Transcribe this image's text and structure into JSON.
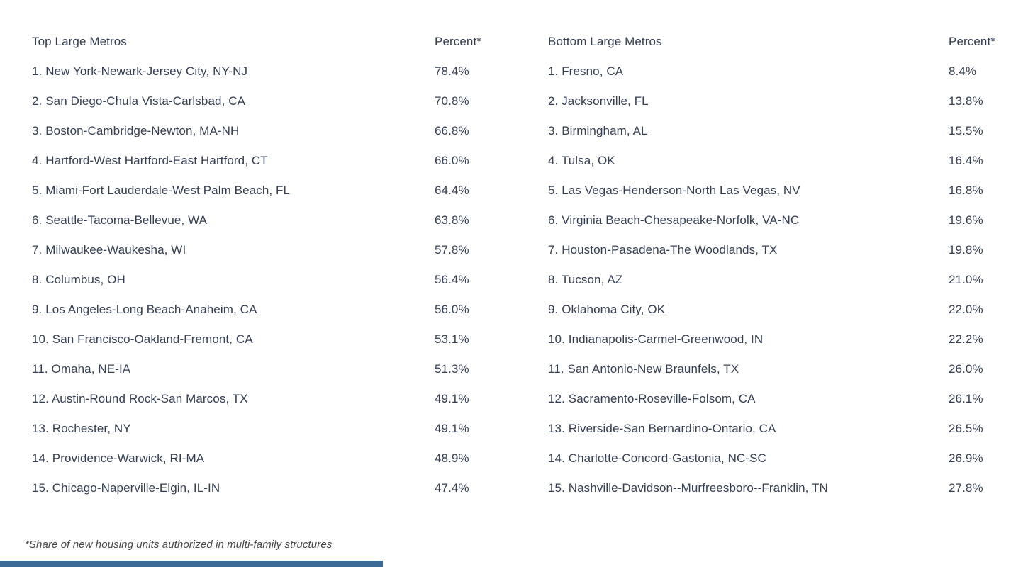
{
  "chart_data": {
    "type": "table",
    "footnote": "*Share of new housing units authorized in multi-family structures",
    "tables": [
      {
        "id": "top-large-metros",
        "header": "Top Large Metros",
        "percent_header": "Percent*",
        "rows": [
          {
            "name": "1. New York-Newark-Jersey City, NY-NJ",
            "percent": "78.4%",
            "value": 78.4
          },
          {
            "name": "2. San Diego-Chula Vista-Carlsbad, CA",
            "percent": "70.8%",
            "value": 70.8
          },
          {
            "name": "3. Boston-Cambridge-Newton, MA-NH",
            "percent": "66.8%",
            "value": 66.8
          },
          {
            "name": "4. Hartford-West Hartford-East Hartford, CT",
            "percent": "66.0%",
            "value": 66.0
          },
          {
            "name": "5. Miami-Fort Lauderdale-West Palm Beach, FL",
            "percent": "64.4%",
            "value": 64.4
          },
          {
            "name": "6. Seattle-Tacoma-Bellevue, WA",
            "percent": "63.8%",
            "value": 63.8
          },
          {
            "name": "7. Milwaukee-Waukesha, WI",
            "percent": "57.8%",
            "value": 57.8
          },
          {
            "name": "8. Columbus, OH",
            "percent": "56.4%",
            "value": 56.4
          },
          {
            "name": "9. Los Angeles-Long Beach-Anaheim, CA",
            "percent": "56.0%",
            "value": 56.0
          },
          {
            "name": "10. San Francisco-Oakland-Fremont, CA",
            "percent": "53.1%",
            "value": 53.1
          },
          {
            "name": "11. Omaha, NE-IA",
            "percent": "51.3%",
            "value": 51.3
          },
          {
            "name": "12. Austin-Round Rock-San Marcos, TX",
            "percent": "49.1%",
            "value": 49.1
          },
          {
            "name": "13. Rochester, NY",
            "percent": "49.1%",
            "value": 49.1
          },
          {
            "name": "14. Providence-Warwick, RI-MA",
            "percent": "48.9%",
            "value": 48.9
          },
          {
            "name": "15. Chicago-Naperville-Elgin, IL-IN",
            "percent": "47.4%",
            "value": 47.4
          }
        ]
      },
      {
        "id": "bottom-large-metros",
        "header": "Bottom Large Metros",
        "percent_header": "Percent*",
        "rows": [
          {
            "name": "1. Fresno, CA",
            "percent": "8.4%",
            "value": 8.4
          },
          {
            "name": "2. Jacksonville, FL",
            "percent": "13.8%",
            "value": 13.8
          },
          {
            "name": "3. Birmingham, AL",
            "percent": "15.5%",
            "value": 15.5
          },
          {
            "name": "4. Tulsa, OK",
            "percent": "16.4%",
            "value": 16.4
          },
          {
            "name": "5. Las Vegas-Henderson-North Las Vegas, NV",
            "percent": "16.8%",
            "value": 16.8
          },
          {
            "name": "6. Virginia Beach-Chesapeake-Norfolk, VA-NC",
            "percent": "19.6%",
            "value": 19.6
          },
          {
            "name": "7. Houston-Pasadena-The Woodlands, TX",
            "percent": "19.8%",
            "value": 19.8
          },
          {
            "name": "8. Tucson, AZ",
            "percent": "21.0%",
            "value": 21.0
          },
          {
            "name": "9. Oklahoma City, OK",
            "percent": "22.0%",
            "value": 22.0
          },
          {
            "name": "10. Indianapolis-Carmel-Greenwood, IN",
            "percent": "22.2%",
            "value": 22.2
          },
          {
            "name": "11. San Antonio-New Braunfels, TX",
            "percent": "26.0%",
            "value": 26.0
          },
          {
            "name": "12. Sacramento-Roseville-Folsom, CA",
            "percent": "26.1%",
            "value": 26.1
          },
          {
            "name": "13. Riverside-San Bernardino-Ontario, CA",
            "percent": "26.5%",
            "value": 26.5
          },
          {
            "name": "14. Charlotte-Concord-Gastonia, NC-SC",
            "percent": "26.9%",
            "value": 26.9
          },
          {
            "name": "15. Nashville-Davidson--Murfreesboro--Franklin, TN",
            "percent": "27.8%",
            "value": 27.8
          }
        ]
      }
    ]
  },
  "colors": {
    "text": "#333e52",
    "footnote": "#454545",
    "bottom_bar": "#3b6a97"
  }
}
